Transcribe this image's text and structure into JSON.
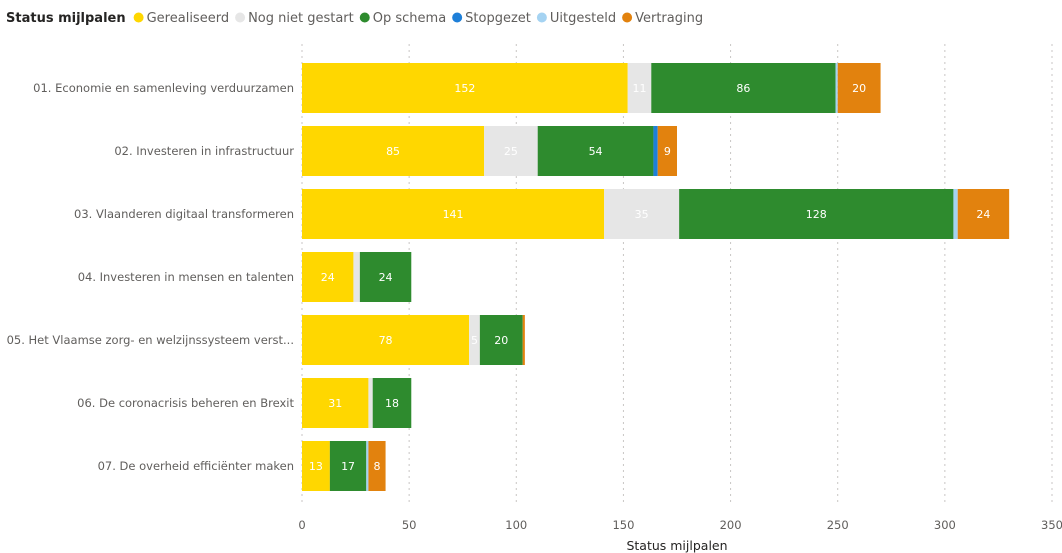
{
  "chart_data": {
    "type": "bar",
    "orientation": "horizontal",
    "stacked": true,
    "legend_title": "Status mijlpalen",
    "legend_position": "top-left",
    "xlabel": "Status mijlpalen",
    "xlim": [
      0,
      350
    ],
    "xticks": [
      "0",
      "50",
      "100",
      "150",
      "200",
      "250",
      "300",
      "350"
    ],
    "grid": true,
    "categories": [
      "01. Economie en samenleving verduurzamen",
      "02. Investeren in infrastructuur",
      "03. Vlaanderen digitaal transformeren",
      "04. Investeren in mensen en talenten",
      "05. Het Vlaamse zorg- en welzijnssysteem verst...",
      "06. De coronacrisis beheren en Brexit",
      "07. De overheid efficiënter maken"
    ],
    "series": [
      {
        "name": "Gerealiseerd",
        "color": "#FFD700",
        "label_color": "#ffffff",
        "values": [
          152,
          85,
          141,
          24,
          78,
          31,
          13
        ]
      },
      {
        "name": "Nog niet gestart",
        "color": "#E6E6E6",
        "label_color": "#ffffff",
        "values": [
          11,
          25,
          35,
          3,
          5,
          2,
          0
        ]
      },
      {
        "name": "Op schema",
        "color": "#2E8B2E",
        "label_color": "#ffffff",
        "values": [
          86,
          54,
          128,
          24,
          20,
          18,
          17
        ]
      },
      {
        "name": "Stopgezet",
        "color": "#1E7FD8",
        "label_color": "#ffffff",
        "values": [
          0,
          2,
          0,
          0,
          0,
          0,
          0
        ]
      },
      {
        "name": "Uitgesteld",
        "color": "#A5D3F2",
        "label_color": "#ffffff",
        "values": [
          1,
          0,
          2,
          0,
          0,
          0,
          1
        ]
      },
      {
        "name": "Vertraging",
        "color": "#E2820E",
        "label_color": "#ffffff",
        "values": [
          20,
          9,
          24,
          0,
          1,
          0,
          8
        ]
      }
    ]
  }
}
